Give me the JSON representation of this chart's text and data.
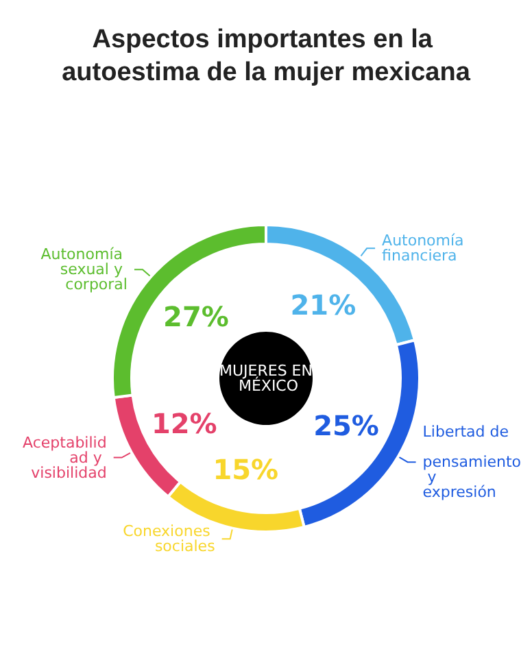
{
  "chart_data": {
    "type": "donut",
    "title": "Aspectos importantes en la autoestima de la mujer mexicana",
    "categories": [
      "Autonomía financiera",
      "Libertad de pensamiento y expresión",
      "Conexiones sociales",
      "Aceptabilidad y visibilidad",
      "Autonomía sexual y corporal"
    ],
    "values": [
      21,
      25,
      15,
      12,
      27
    ],
    "colors": [
      "#4fb3ea",
      "#1f5ce0",
      "#f8d62c",
      "#e4416a",
      "#5cbd2e"
    ],
    "value_labels": [
      "21%",
      "25%",
      "15%",
      "12%",
      "27%"
    ],
    "annotations": [
      "MUJERES EN MÉXICO"
    ],
    "legend": false
  }
}
